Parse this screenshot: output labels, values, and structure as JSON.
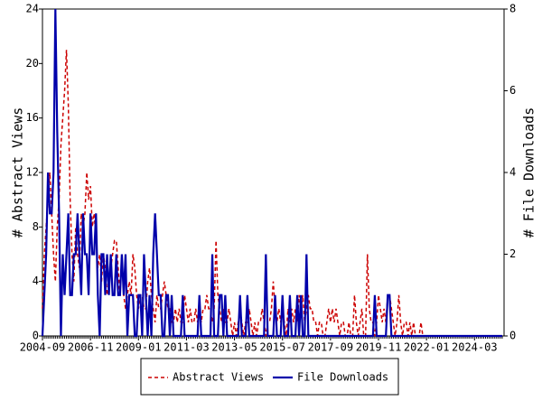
{
  "chart_data": {
    "type": "line",
    "y_label": "# Abstract Views",
    "y2_label": "# File Downloads",
    "categories": [
      "2004-09",
      null,
      null,
      null,
      null,
      null,
      null,
      null,
      null,
      null,
      null,
      null,
      null,
      null,
      null,
      null,
      null,
      null,
      null,
      null,
      null,
      null,
      null,
      null,
      null,
      null,
      "2006-11",
      null,
      null,
      null,
      null,
      null,
      null,
      null,
      null,
      null,
      null,
      null,
      null,
      null,
      null,
      null,
      null,
      null,
      null,
      null,
      null,
      null,
      null,
      null,
      null,
      null,
      "2009-01",
      null,
      null,
      null,
      null,
      null,
      null,
      null,
      null,
      null,
      null,
      null,
      null,
      null,
      null,
      null,
      null,
      null,
      null,
      null,
      null,
      null,
      null,
      null,
      null,
      null,
      "2011-03",
      null,
      null,
      null,
      null,
      null,
      null,
      null,
      null,
      null,
      null,
      null,
      null,
      null,
      null,
      null,
      null,
      null,
      null,
      null,
      null,
      null,
      null,
      null,
      null,
      null,
      "2013-05",
      null,
      null,
      null,
      null,
      null,
      null,
      null,
      null,
      null,
      null,
      null,
      null,
      null,
      null,
      null,
      null,
      null,
      null,
      null,
      null,
      null,
      null,
      null,
      null,
      null,
      "2015-07",
      null,
      null,
      null,
      null,
      null,
      null,
      null,
      null,
      null,
      null,
      null,
      null,
      null,
      null,
      null,
      null,
      null,
      null,
      null,
      null,
      null,
      null,
      null,
      null,
      null,
      "2017-09",
      null,
      null,
      null,
      null,
      null,
      null,
      null,
      null,
      null,
      null,
      null,
      null,
      null,
      null,
      null,
      null,
      null,
      null,
      null,
      null,
      null,
      null,
      null,
      null,
      null,
      "2019-11",
      null,
      null,
      null,
      null,
      null,
      null,
      null,
      null,
      null,
      null,
      null,
      null,
      null,
      null,
      null,
      null,
      null,
      null,
      null,
      null,
      null,
      null,
      null,
      null,
      null,
      "2022-01",
      null,
      null,
      null,
      null,
      null,
      null,
      null,
      null,
      null,
      null,
      null,
      null,
      null,
      null,
      null,
      null,
      null,
      null,
      null,
      null,
      null,
      null,
      null,
      null,
      null,
      "2024-03",
      null,
      null,
      null,
      null,
      null,
      null,
      null,
      null,
      null,
      null,
      null,
      null,
      null,
      null,
      null
    ],
    "series": [
      {
        "name": "Abstract Views",
        "color": "#cc0000",
        "dash": true,
        "axis": "y",
        "values": [
          2,
          6,
          8,
          10,
          12,
          9,
          6,
          4,
          8,
          10,
          14,
          16,
          18,
          21,
          17,
          10,
          6,
          4,
          8,
          6,
          5,
          9,
          8,
          9,
          12,
          10,
          11,
          8,
          9,
          7,
          5,
          6,
          4,
          6,
          5,
          3,
          4,
          5,
          6,
          7,
          7,
          5,
          3,
          6,
          3,
          2,
          3,
          4,
          3,
          6,
          5,
          3,
          2,
          3,
          3,
          2,
          2,
          4,
          5,
          3,
          2,
          1,
          3,
          2,
          2,
          3,
          4,
          3,
          2,
          2,
          1,
          1,
          2,
          1,
          2,
          1,
          1,
          3,
          2,
          1,
          2,
          1,
          1,
          2,
          1,
          2,
          1,
          2,
          2,
          3,
          2,
          2,
          1,
          2,
          7,
          3,
          2,
          1,
          2,
          1,
          1,
          2,
          1,
          0,
          1,
          0,
          1,
          2,
          1,
          0,
          1,
          1,
          2,
          1,
          0,
          1,
          0,
          1,
          1,
          2,
          1,
          0,
          1,
          1,
          2,
          4,
          2,
          1,
          2,
          1,
          2,
          1,
          0,
          2,
          1,
          2,
          1,
          2,
          1,
          3,
          2,
          3,
          1,
          2,
          3,
          2,
          2,
          1,
          1,
          0,
          1,
          1,
          0,
          0,
          1,
          2,
          1,
          2,
          1,
          2,
          1,
          0,
          1,
          1,
          0,
          0,
          1,
          0,
          0,
          3,
          1,
          0,
          1,
          2,
          0,
          0,
          6,
          2,
          1,
          1,
          0,
          1,
          3,
          2,
          1,
          2,
          1,
          3,
          3,
          2,
          1,
          0,
          1,
          3,
          1,
          0,
          1,
          1,
          0,
          1,
          0,
          1,
          0,
          0,
          0,
          1,
          0,
          0,
          0,
          0,
          0,
          0,
          0,
          0,
          0,
          0,
          0,
          0,
          0,
          0,
          0,
          0,
          0,
          0,
          0,
          0,
          0,
          0,
          0,
          0,
          0,
          0,
          0,
          0,
          0,
          0,
          0,
          0,
          0,
          0,
          0,
          0,
          0,
          0,
          0,
          0,
          0,
          0,
          0,
          0
        ]
      },
      {
        "name": "File Downloads",
        "color": "#0000aa",
        "dash": false,
        "axis": "y2",
        "values": [
          0,
          1,
          2,
          4,
          3,
          3,
          4,
          8,
          5,
          3,
          0,
          2,
          1,
          2,
          3,
          1,
          1,
          2,
          2,
          3,
          2,
          1,
          3,
          2,
          2,
          1,
          3,
          2,
          2,
          3,
          1,
          0,
          2,
          2,
          1,
          2,
          1,
          2,
          1,
          1,
          2,
          1,
          1,
          2,
          1,
          2,
          0,
          1,
          1,
          1,
          0,
          0,
          1,
          1,
          0,
          2,
          1,
          0,
          1,
          0,
          2,
          3,
          2,
          1,
          1,
          0,
          0,
          1,
          1,
          0,
          1,
          0,
          0,
          0,
          0,
          0,
          1,
          0,
          0,
          0,
          0,
          0,
          0,
          0,
          0,
          1,
          0,
          0,
          0,
          0,
          0,
          0,
          2,
          0,
          0,
          0,
          1,
          1,
          0,
          1,
          0,
          0,
          0,
          0,
          0,
          0,
          0,
          1,
          0,
          0,
          0,
          1,
          0,
          0,
          0,
          0,
          0,
          0,
          0,
          0,
          0,
          2,
          0,
          0,
          0,
          0,
          1,
          0,
          0,
          0,
          1,
          0,
          0,
          0,
          1,
          0,
          0,
          0,
          1,
          0,
          1,
          0,
          0,
          2,
          0,
          0,
          0,
          0,
          0,
          0,
          0,
          0,
          0,
          0,
          0,
          0,
          0,
          0,
          0,
          0,
          0,
          0,
          0,
          0,
          0,
          0,
          0,
          0,
          0,
          0,
          0,
          0,
          0,
          0,
          0,
          0,
          0,
          0,
          0,
          0,
          1,
          0,
          0,
          0,
          0,
          0,
          0,
          1,
          1,
          0,
          0,
          0,
          0,
          0,
          0,
          0,
          0,
          0,
          0,
          0,
          0,
          0,
          0,
          0,
          0,
          0,
          0,
          0,
          0,
          0,
          0,
          0,
          0,
          0,
          0,
          0,
          0,
          0,
          0,
          0,
          0,
          0,
          0,
          0,
          0,
          0,
          0,
          0,
          0,
          0,
          0,
          0,
          0,
          0,
          0,
          0,
          0,
          0,
          0,
          0,
          0,
          0,
          0,
          0,
          0,
          0,
          0,
          0,
          0,
          0
        ]
      }
    ],
    "ylim": [
      0,
      24
    ],
    "yticks": [
      0,
      4,
      8,
      12,
      16,
      20,
      24
    ],
    "y2lim": [
      0,
      8
    ],
    "y2ticks": [
      0,
      2,
      4,
      6,
      8
    ],
    "legend": "bottom"
  }
}
